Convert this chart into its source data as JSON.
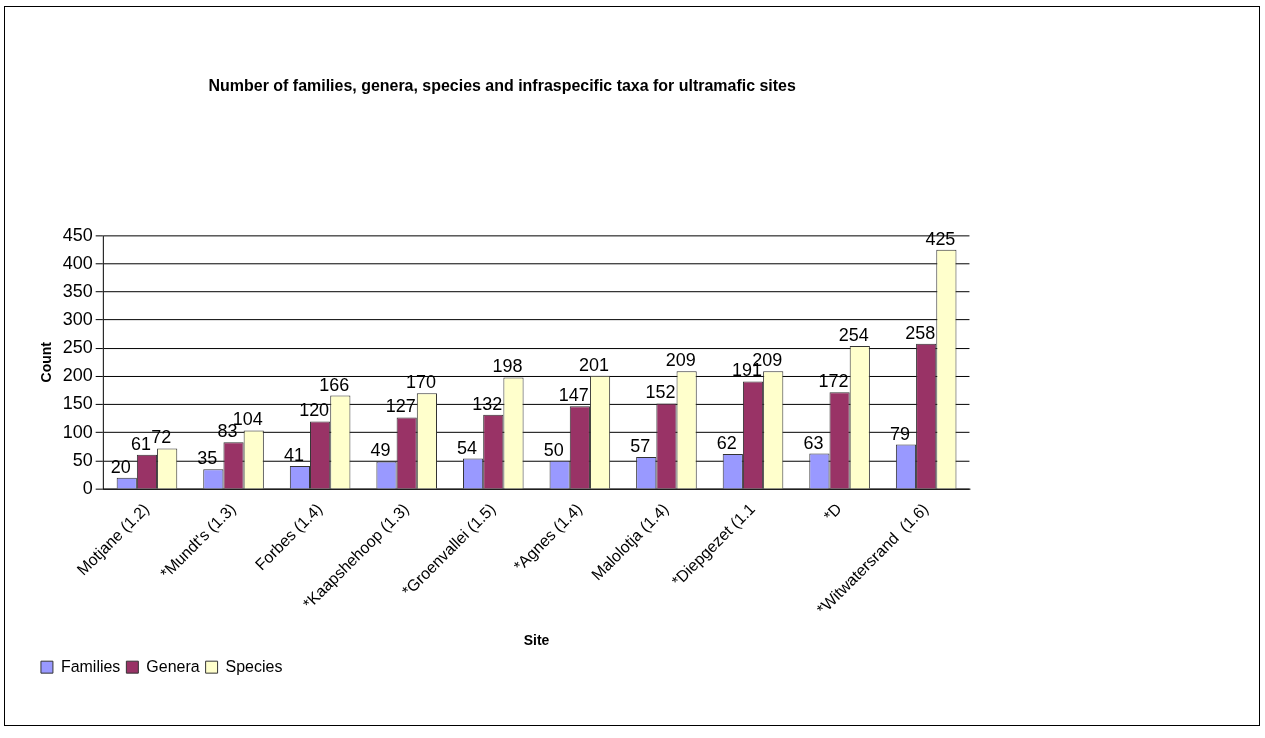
{
  "chart_data": {
    "type": "bar",
    "title": "Number of families, genera, species and infraspecific taxa for ultramafic sites",
    "xlabel": "Site",
    "ylabel": "Count",
    "categories": [
      "Motjane (1.2)",
      "*Mundt's (1.3)",
      "Forbes (1.4)",
      "*Kaapshehoop (1.3)",
      "*Groenvallei (1.5)",
      "*Agnes (1.4)",
      "Malolotja (1.4)",
      "*Diepgezet (1.1",
      "*D",
      "*Witwatersrand  (1.6)"
    ],
    "series": [
      {
        "name": "Families",
        "color": "#9999ff",
        "values": [
          20,
          35,
          41,
          49,
          54,
          50,
          57,
          62,
          63,
          79
        ]
      },
      {
        "name": "Genera",
        "color": "#993366",
        "values": [
          61,
          83,
          120,
          127,
          132,
          147,
          152,
          191,
          172,
          258
        ]
      },
      {
        "name": "Species",
        "color": "#ffffcc",
        "values": [
          72,
          104,
          166,
          170,
          198,
          201,
          209,
          209,
          254,
          425
        ]
      }
    ],
    "ylim": [
      0,
      450
    ],
    "yticks": [
      0,
      50,
      100,
      150,
      200,
      250,
      300,
      350,
      400,
      450
    ],
    "grid": "y",
    "legend": "bottom",
    "data_labels": true
  }
}
